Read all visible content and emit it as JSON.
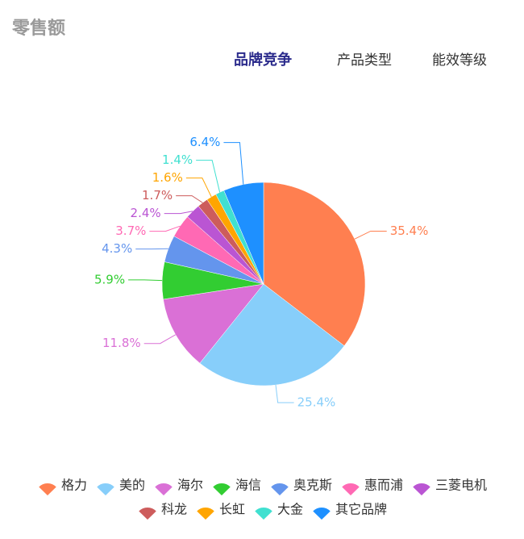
{
  "header": {
    "title": "零售额"
  },
  "tabs": [
    "品牌竞争",
    "产品类型",
    "能效等级"
  ],
  "chart_data": {
    "type": "pie",
    "categories": [
      "格力",
      "美的",
      "海尔",
      "海信",
      "奥克斯",
      "惠而浦",
      "三菱电机",
      "科龙",
      "长虹",
      "大金",
      "其它品牌"
    ],
    "values": [
      35.4,
      25.4,
      11.8,
      5.9,
      4.3,
      3.7,
      2.4,
      1.7,
      1.6,
      1.4,
      6.4
    ],
    "value_labels": [
      "35.4%",
      "25.4%",
      "11.8%",
      "5.9%",
      "4.3%",
      "3.7%",
      "2.4%",
      "1.7%",
      "1.6%",
      "1.4%",
      "6.4%"
    ],
    "colors": [
      "#ff7f50",
      "#87cefa",
      "#da70d6",
      "#32cd32",
      "#6495ed",
      "#ff69b4",
      "#ba55d3",
      "#cd5c5c",
      "#ffa500",
      "#40e0d0",
      "#1e90ff"
    ]
  }
}
